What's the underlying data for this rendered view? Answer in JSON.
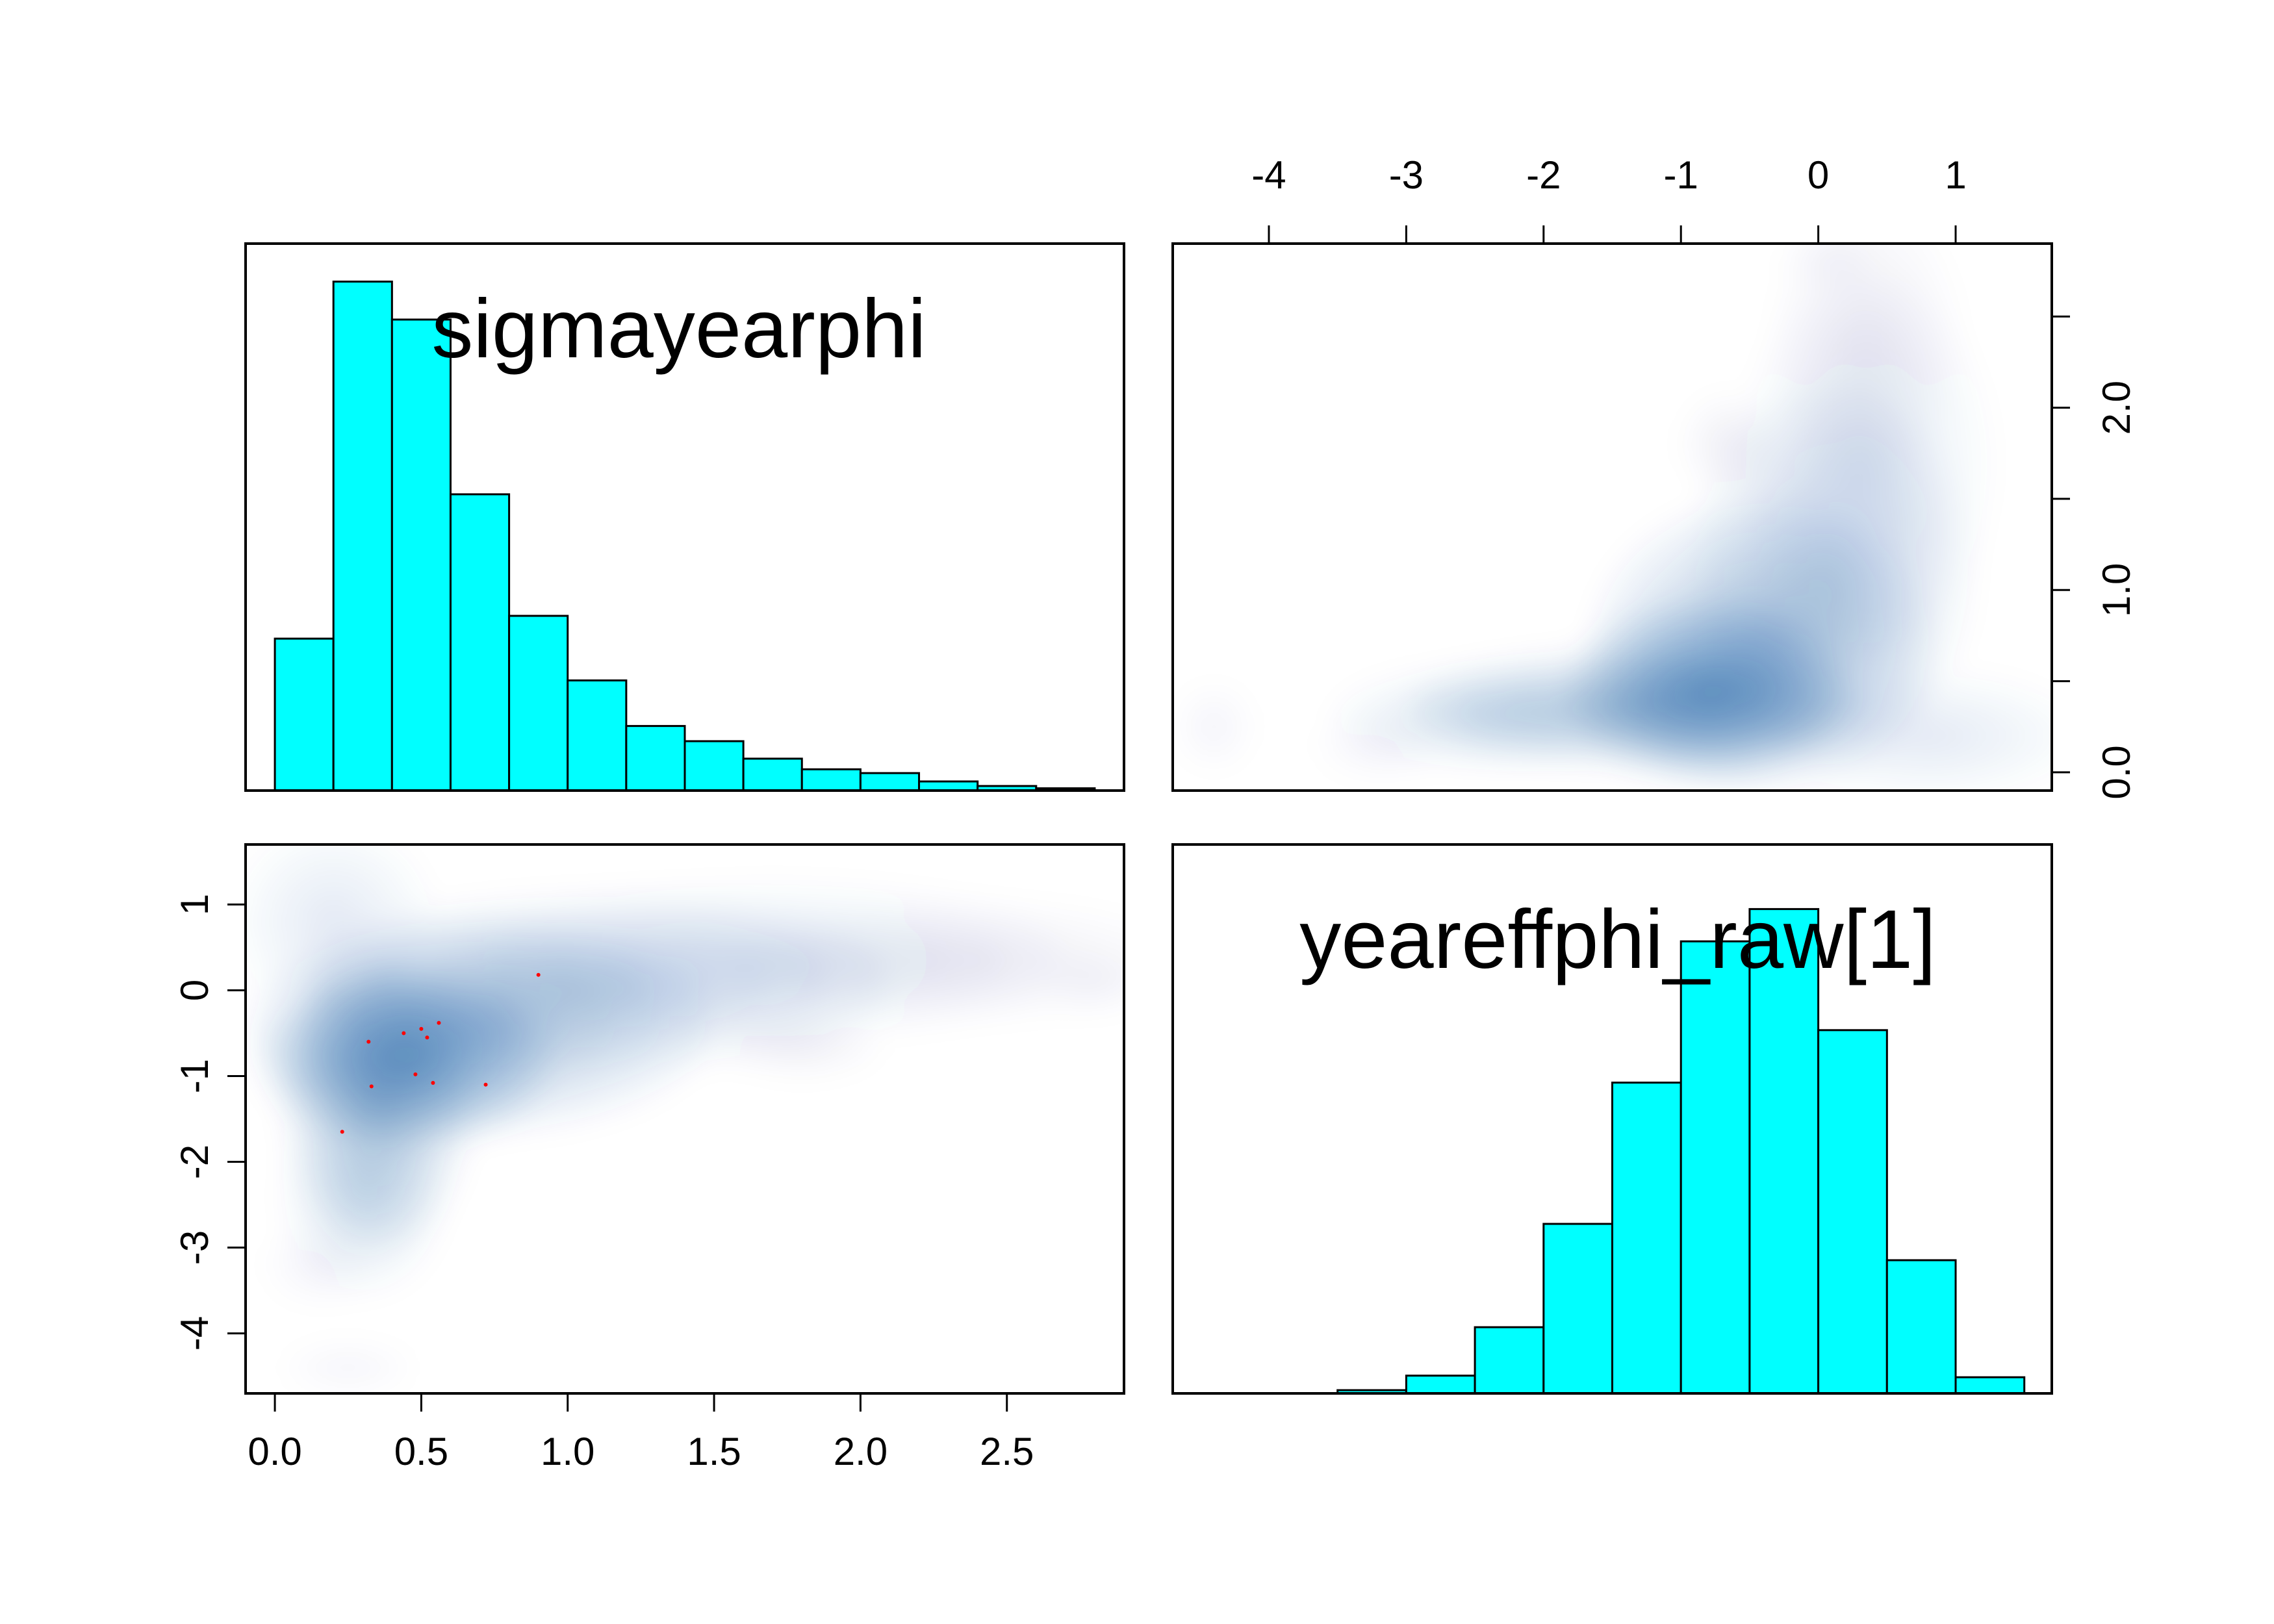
{
  "chart_data": {
    "type": "pairs",
    "variables": [
      "sigmayearphi",
      "yeareffphi_raw[1]"
    ],
    "axes": {
      "sigma": {
        "range": [
          -0.1,
          2.9
        ],
        "ticks": [
          "0.0",
          "0.5",
          "1.0",
          "1.5",
          "2.0",
          "2.5"
        ],
        "tick_values": [
          0,
          0.5,
          1.0,
          1.5,
          2.0,
          2.5
        ]
      },
      "yeareff": {
        "range": [
          -4.7,
          1.7
        ],
        "ticks": [
          "-4",
          "-3",
          "-2",
          "-1",
          "0",
          "1"
        ],
        "tick_values": [
          -4,
          -3,
          -2,
          -1,
          0,
          1
        ]
      },
      "sigma_right_ticks": {
        "labels": [
          "0.0",
          "1.0",
          "2.0"
        ],
        "values": [
          0,
          1.0,
          2.0
        ],
        "minor_values": [
          0.5,
          1.5,
          2.5
        ]
      }
    },
    "bar_color": "#00ffff",
    "density_color": "#08519c",
    "histograms": [
      {
        "variable": "sigmayearphi",
        "bin_edges": [
          0.0,
          0.2,
          0.4,
          0.6,
          0.8,
          1.0,
          1.2,
          1.4,
          1.6,
          1.8,
          2.0,
          2.2,
          2.4,
          2.6,
          2.8
        ],
        "heights": [
          0.2,
          0.67,
          0.62,
          0.39,
          0.23,
          0.145,
          0.085,
          0.065,
          0.042,
          0.028,
          0.023,
          0.012,
          0.006,
          0.003
        ]
      },
      {
        "variable": "yeareffphi_raw[1]",
        "bin_edges": [
          -3.5,
          -3.0,
          -2.5,
          -2.0,
          -1.5,
          -1.0,
          -0.5,
          0.0,
          0.5,
          1.0,
          1.5
        ],
        "heights": [
          0.004,
          0.022,
          0.082,
          0.21,
          0.385,
          0.56,
          0.6,
          0.45,
          0.165,
          0.02
        ]
      }
    ],
    "density_clusters": [
      {
        "sigma": 0.45,
        "yeareff": -0.8,
        "s_sigma": 0.22,
        "s_yeareff": 0.45,
        "w": 1.0
      },
      {
        "sigma": 0.35,
        "yeareff": -1.3,
        "s_sigma": 0.14,
        "s_yeareff": 0.75,
        "w": 0.6
      },
      {
        "sigma": 0.3,
        "yeareff": -2.4,
        "s_sigma": 0.12,
        "s_yeareff": 0.5,
        "w": 0.28
      },
      {
        "sigma": 0.7,
        "yeareff": -0.4,
        "s_sigma": 0.35,
        "s_yeareff": 0.55,
        "w": 0.55
      },
      {
        "sigma": 1.1,
        "yeareff": 0.1,
        "s_sigma": 0.45,
        "s_yeareff": 0.45,
        "w": 0.35
      },
      {
        "sigma": 1.7,
        "yeareff": 0.35,
        "s_sigma": 0.45,
        "s_yeareff": 0.4,
        "w": 0.22
      },
      {
        "sigma": 2.35,
        "yeareff": 0.35,
        "s_sigma": 0.35,
        "s_yeareff": 0.3,
        "w": 0.13
      },
      {
        "sigma": 0.2,
        "yeareff": 0.8,
        "s_sigma": 0.15,
        "s_yeareff": 0.5,
        "w": 0.2
      },
      {
        "sigma": 0.25,
        "yeareff": -4.4,
        "s_sigma": 0.1,
        "s_yeareff": 0.12,
        "w": 0.12
      },
      {
        "sigma": 0.15,
        "yeareff": -3.2,
        "s_sigma": 0.08,
        "s_yeareff": 0.2,
        "w": 0.12
      },
      {
        "sigma": 1.8,
        "yeareff": -0.65,
        "s_sigma": 0.12,
        "s_yeareff": 0.15,
        "w": 0.13
      },
      {
        "sigma": 2.8,
        "yeareff": 0.1,
        "s_sigma": 0.08,
        "s_yeareff": 0.15,
        "w": 0.12
      }
    ],
    "divergent_points": [
      {
        "sigma": 0.32,
        "yeareff": -0.6
      },
      {
        "sigma": 0.44,
        "yeareff": -0.5
      },
      {
        "sigma": 0.5,
        "yeareff": -0.45
      },
      {
        "sigma": 0.52,
        "yeareff": -0.55
      },
      {
        "sigma": 0.56,
        "yeareff": -0.38
      },
      {
        "sigma": 0.48,
        "yeareff": -0.98
      },
      {
        "sigma": 0.33,
        "yeareff": -1.12
      },
      {
        "sigma": 0.54,
        "yeareff": -1.08
      },
      {
        "sigma": 0.72,
        "yeareff": -1.1
      },
      {
        "sigma": 0.23,
        "yeareff": -1.65
      },
      {
        "sigma": 0.9,
        "yeareff": 0.18
      }
    ],
    "divergent_color": "#ff0000"
  }
}
